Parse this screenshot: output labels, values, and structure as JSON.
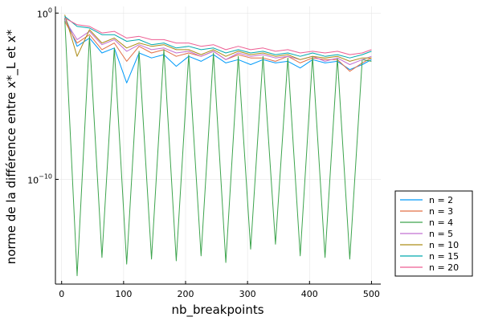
{
  "chart_data": {
    "type": "line",
    "xlabel": "nb_breakpoints",
    "ylabel": "norme de la différence entre x*_L et x*",
    "yscale": "log",
    "xlim": [
      -10,
      515
    ],
    "ylim_exp": [
      -16.3,
      0.4
    ],
    "x_ticks": [
      {
        "value": 0,
        "label": "0"
      },
      {
        "value": 100,
        "label": "100"
      },
      {
        "value": 200,
        "label": "200"
      },
      {
        "value": 300,
        "label": "300"
      },
      {
        "value": 400,
        "label": "400"
      },
      {
        "value": 500,
        "label": "500"
      }
    ],
    "y_ticks": [
      {
        "exp": 0,
        "base": "10",
        "sup": "0"
      },
      {
        "exp": -10,
        "base": "10",
        "sup": "−10"
      }
    ],
    "grid": true,
    "legend_position": "outer bottom-right",
    "x": [
      5,
      25,
      45,
      65,
      85,
      105,
      125,
      145,
      165,
      185,
      205,
      225,
      245,
      265,
      285,
      305,
      325,
      345,
      365,
      385,
      405,
      425,
      445,
      465,
      485,
      500
    ],
    "series": [
      {
        "name": "n = 2",
        "color": "#009af9",
        "y_log10": [
          -0.2,
          -2.0,
          -1.5,
          -2.4,
          -2.1,
          -4.2,
          -2.4,
          -2.7,
          -2.5,
          -3.2,
          -2.6,
          -2.9,
          -2.5,
          -3.0,
          -2.8,
          -3.1,
          -2.8,
          -3.0,
          -2.9,
          -3.3,
          -2.8,
          -3.0,
          -2.9,
          -3.4,
          -3.1,
          -2.8
        ]
      },
      {
        "name": "n = 3",
        "color": "#e26f46",
        "y_log10": [
          -0.5,
          -1.8,
          -1.3,
          -2.2,
          -1.8,
          -2.9,
          -2.0,
          -2.4,
          -2.2,
          -2.6,
          -2.4,
          -2.6,
          -2.3,
          -2.8,
          -2.5,
          -2.7,
          -2.7,
          -2.9,
          -2.6,
          -3.0,
          -2.7,
          -2.8,
          -2.8,
          -3.5,
          -3.0,
          -2.7
        ]
      },
      {
        "name": "n = 4",
        "color": "#3da44d",
        "y_log10": [
          -0.3,
          -15.8,
          -1.4,
          -14.7,
          -2.1,
          -15.1,
          -2.3,
          -14.8,
          -2.2,
          -14.9,
          -2.5,
          -14.6,
          -2.4,
          -15.0,
          -2.6,
          -14.2,
          -2.6,
          -13.9,
          -2.7,
          -14.6,
          -2.6,
          -14.7,
          -2.7,
          -14.8,
          -2.8,
          -2.9
        ]
      },
      {
        "name": "n = 5",
        "color": "#c271d2",
        "y_log10": [
          -0.4,
          -1.6,
          -1.1,
          -1.9,
          -1.6,
          -2.3,
          -1.9,
          -2.2,
          -2.1,
          -2.4,
          -2.3,
          -2.6,
          -2.3,
          -2.8,
          -2.4,
          -2.6,
          -2.5,
          -2.7,
          -2.6,
          -2.8,
          -2.6,
          -2.9,
          -2.7,
          -3.1,
          -2.8,
          -2.6
        ]
      },
      {
        "name": "n = 10",
        "color": "#ac8d18",
        "y_log10": [
          -0.1,
          -2.6,
          -1.0,
          -1.8,
          -1.5,
          -2.1,
          -1.8,
          -2.0,
          -1.9,
          -2.2,
          -2.2,
          -2.5,
          -2.2,
          -2.6,
          -2.3,
          -2.5,
          -2.4,
          -2.6,
          -2.5,
          -2.8,
          -2.6,
          -2.7,
          -2.6,
          -2.9,
          -2.7,
          -2.7
        ]
      },
      {
        "name": "n = 15",
        "color": "#00a9ad",
        "y_log10": [
          -0.2,
          -0.8,
          -0.9,
          -1.3,
          -1.3,
          -1.7,
          -1.6,
          -1.9,
          -1.8,
          -2.1,
          -2.0,
          -2.2,
          -2.1,
          -2.4,
          -2.2,
          -2.4,
          -2.3,
          -2.5,
          -2.4,
          -2.6,
          -2.4,
          -2.6,
          -2.5,
          -2.7,
          -2.5,
          -2.3
        ]
      },
      {
        "name": "n = 20",
        "color": "#ed5d92",
        "y_log10": [
          -0.3,
          -0.7,
          -0.8,
          -1.2,
          -1.1,
          -1.5,
          -1.4,
          -1.6,
          -1.6,
          -1.8,
          -1.8,
          -2.0,
          -1.9,
          -2.2,
          -2.0,
          -2.2,
          -2.1,
          -2.3,
          -2.2,
          -2.4,
          -2.3,
          -2.4,
          -2.3,
          -2.5,
          -2.4,
          -2.2
        ]
      }
    ]
  }
}
